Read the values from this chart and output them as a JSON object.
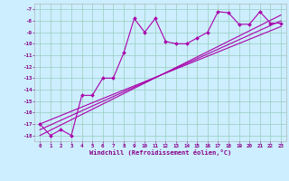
{
  "xlabel": "Windchill (Refroidissement éolien,°C)",
  "bg_color": "#cceeff",
  "grid_color": "#99ccbb",
  "line_color": "#aa00aa",
  "scatter_x": [
    0,
    1,
    2,
    3,
    4,
    5,
    6,
    7,
    8,
    9,
    10,
    11,
    12,
    13,
    14,
    15,
    16,
    17,
    18,
    19,
    20,
    21,
    22,
    23
  ],
  "scatter_y": [
    -17,
    -18,
    -17.5,
    -18,
    -14.5,
    -14.5,
    -13,
    -13,
    -10.8,
    -7.8,
    -9,
    -7.8,
    -9.8,
    -10,
    -10,
    -9.5,
    -9,
    -7.2,
    -7.3,
    -8.3,
    -8.3,
    -7.2,
    -8.2,
    -8.2
  ],
  "line1_x": [
    0,
    23
  ],
  "line1_y": [
    -17.5,
    -8.0
  ],
  "line2_x": [
    0,
    23
  ],
  "line2_y": [
    -17.0,
    -8.5
  ],
  "line3_x": [
    0,
    23
  ],
  "line3_y": [
    -18.0,
    -7.5
  ],
  "xlim": [
    -0.5,
    23.5
  ],
  "ylim": [
    -18.5,
    -6.5
  ],
  "yticks": [
    -7,
    -8,
    -9,
    -10,
    -11,
    -12,
    -13,
    -14,
    -15,
    -16,
    -17,
    -18
  ],
  "xticks": [
    0,
    1,
    2,
    3,
    4,
    5,
    6,
    7,
    8,
    9,
    10,
    11,
    12,
    13,
    14,
    15,
    16,
    17,
    18,
    19,
    20,
    21,
    22,
    23
  ],
  "tick_fontsize": 4.2,
  "xlabel_fontsize": 5.0
}
